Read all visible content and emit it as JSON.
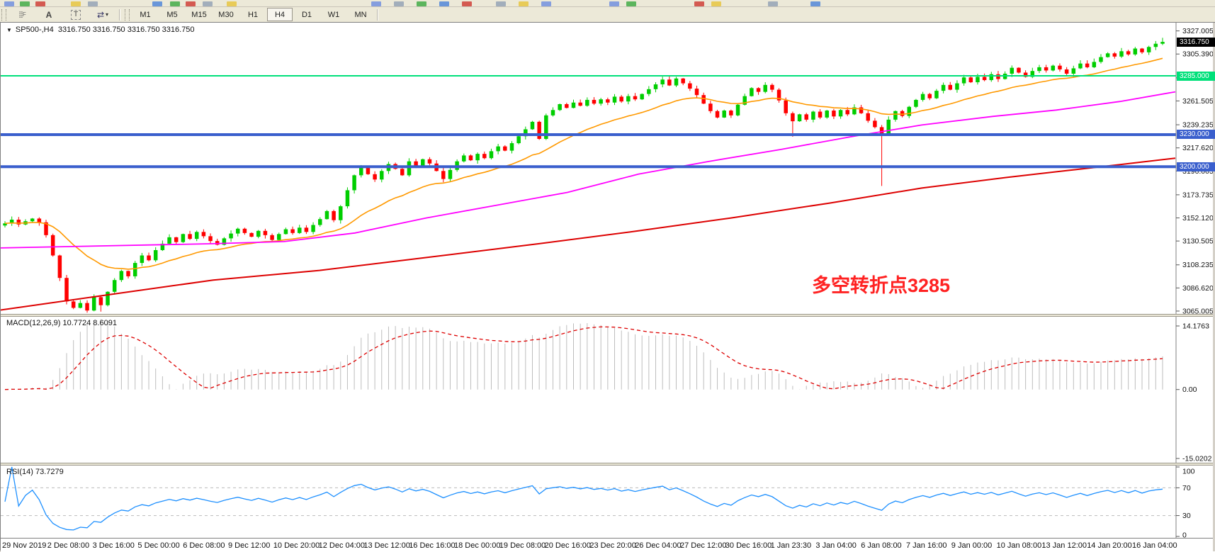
{
  "toolbar": {
    "left_icons": [
      {
        "name": "docking-grip-icon",
        "glyph": "F"
      },
      {
        "name": "text-label-icon",
        "glyph": "A"
      },
      {
        "name": "text-box-icon",
        "glyph": "T"
      },
      {
        "name": "arrow-objects-icon",
        "glyph": "⇄"
      },
      {
        "name": "dropdown-caret-icon",
        "glyph": "▾"
      }
    ],
    "timeframes": [
      "M1",
      "M5",
      "M15",
      "M30",
      "H1",
      "H4",
      "D1",
      "W1",
      "MN"
    ],
    "active_timeframe": "H4"
  },
  "chart": {
    "title_symbol": "SP500-,H4",
    "title_ohlc": "3316.750 3316.750 3316.750 3316.750",
    "current_price": "3316.750",
    "annotation": {
      "text": "多空转折点3285",
      "color": "#FF2222"
    },
    "price_axis_ticks": [
      "3327.005",
      "3305.390",
      "3283.120",
      "3261.505",
      "3239.235",
      "3217.620",
      "3196.005",
      "3173.735",
      "3152.120",
      "3130.505",
      "3108.235",
      "3086.620",
      "3065.005"
    ],
    "hlines": [
      {
        "price": 3285.0,
        "label": "3285.000",
        "color": "#00E07A",
        "text_color": "#FFFFFF",
        "width": 2
      },
      {
        "price": 3230.0,
        "label": "3230.000",
        "color": "#3A5FCD",
        "text_color": "#FFFFFF",
        "width": 4
      },
      {
        "price": 3200.0,
        "label": "3200.000",
        "color": "#3A5FCD",
        "text_color": "#FFFFFF",
        "width": 4
      }
    ]
  },
  "indicators": {
    "macd": {
      "label": "MACD(12,26,9) 10.7724 8.6091",
      "axis_top": "14.1763",
      "axis_zero": "0.00",
      "axis_bottom": "-15.0202"
    },
    "rsi": {
      "label": "RSI(14) 73.7279",
      "axis": [
        "100",
        "70",
        "30",
        "0"
      ],
      "levels": [
        70,
        30
      ]
    }
  },
  "time_axis": {
    "labels": [
      "29 Nov 2019",
      "2 Dec 08:00",
      "3 Dec 16:00",
      "5 Dec 00:00",
      "6 Dec 08:00",
      "9 Dec 12:00",
      "10 Dec 20:00",
      "12 Dec 04:00",
      "13 Dec 12:00",
      "16 Dec 16:00",
      "18 Dec 00:00",
      "19 Dec 08:00",
      "20 Dec 16:00",
      "23 Dec 20:00",
      "26 Dec 04:00",
      "27 Dec 12:00",
      "30 Dec 16:00",
      "1 Jan 23:30",
      "3 Jan 04:00",
      "6 Jan 08:00",
      "7 Jan 16:00",
      "9 Jan 00:00",
      "10 Jan 08:00",
      "13 Jan 12:00",
      "14 Jan 20:00",
      "16 Jan 04:00"
    ]
  },
  "colors": {
    "candle_up": "#00CE00",
    "candle_down": "#FF0000",
    "ma_fast": "#FF9900",
    "ma_mid": "#FF00FF",
    "ma_slow": "#DD0000",
    "macd_hist": "#BDBDBD",
    "macd_signal": "#DD0000",
    "rsi_line": "#1E90FF",
    "rsi_level": "#BBBBBB",
    "current_price_bg": "#000000"
  },
  "chart_data": {
    "type": "candlestick",
    "symbol": "SP500-",
    "period": "H4",
    "price_range_visible": [
      3065.005,
      3327.005
    ],
    "closes": [
      3147,
      3150.5,
      3146,
      3149,
      3151.5,
      3148,
      3136,
      3117,
      3096,
      3074,
      3068,
      3072.5,
      3065.5,
      3078,
      3070.5,
      3083,
      3094,
      3102.5,
      3097.5,
      3110,
      3117,
      3112.5,
      3122,
      3128,
      3134,
      3129.5,
      3137,
      3132.5,
      3139,
      3135,
      3130.5,
      3127,
      3133,
      3137.5,
      3142,
      3138,
      3134.5,
      3140,
      3136,
      3131.5,
      3137,
      3141.5,
      3138,
      3143,
      3139,
      3145.5,
      3151,
      3158.5,
      3150,
      3163,
      3178,
      3192,
      3199.5,
      3193,
      3188,
      3196,
      3202.5,
      3198,
      3192,
      3205,
      3200.5,
      3207,
      3203,
      3196,
      3188.5,
      3197,
      3205,
      3210.5,
      3206,
      3212,
      3208,
      3214.5,
      3219,
      3215,
      3222,
      3228.5,
      3235,
      3242,
      3226,
      3248,
      3253,
      3258.5,
      3255,
      3260,
      3257,
      3262.5,
      3259,
      3263,
      3260,
      3265.5,
      3261,
      3266,
      3263,
      3268,
      3272.5,
      3277,
      3281.5,
      3276,
      3282.5,
      3278,
      3273,
      3267,
      3259,
      3252,
      3246,
      3252.5,
      3248,
      3258,
      3266,
      3273.5,
      3270,
      3276.5,
      3272,
      3262,
      3250,
      3242.5,
      3249,
      3244,
      3251.5,
      3246,
      3252.5,
      3247,
      3253,
      3249,
      3255.5,
      3250,
      3243,
      3237,
      3230.5,
      3244,
      3252,
      3247.5,
      3256,
      3262.5,
      3268,
      3264,
      3271,
      3276.5,
      3272,
      3278,
      3283.5,
      3279,
      3284,
      3281,
      3286.5,
      3282,
      3287,
      3292.5,
      3288,
      3284,
      3289.5,
      3293,
      3290,
      3294.5,
      3291,
      3287,
      3292,
      3296.5,
      3293,
      3298,
      3302.5,
      3306,
      3303,
      3308,
      3305,
      3310.5,
      3307,
      3312,
      3315,
      3316.75
    ],
    "wick_overrides": {
      "12": {
        "low": 3063.5
      },
      "14": {
        "low": 3064.5
      },
      "115": {
        "low": 3228
      },
      "128": {
        "low": 3182
      },
      "169": {
        "high": 3320.5
      }
    },
    "ma_fast_period": 20,
    "ma_mid_points": [
      [
        0,
        3124
      ],
      [
        150,
        3126
      ],
      [
        300,
        3128
      ],
      [
        400,
        3130
      ],
      [
        500,
        3138
      ],
      [
        600,
        3152
      ],
      [
        700,
        3164
      ],
      [
        800,
        3176
      ],
      [
        900,
        3193
      ],
      [
        1000,
        3205
      ],
      [
        1100,
        3216
      ],
      [
        1200,
        3228
      ],
      [
        1300,
        3239
      ],
      [
        1400,
        3247
      ],
      [
        1490,
        3253
      ],
      [
        1580,
        3261
      ],
      [
        1658,
        3270
      ]
    ],
    "ma_slow_points": [
      [
        0,
        3066
      ],
      [
        150,
        3080
      ],
      [
        300,
        3094
      ],
      [
        450,
        3103
      ],
      [
        600,
        3115
      ],
      [
        760,
        3128
      ],
      [
        900,
        3140
      ],
      [
        1030,
        3152
      ],
      [
        1170,
        3166
      ],
      [
        1300,
        3180
      ],
      [
        1420,
        3190
      ],
      [
        1500,
        3196
      ],
      [
        1580,
        3202
      ],
      [
        1658,
        3208
      ]
    ],
    "macd_params": [
      12,
      26,
      9
    ],
    "macd_axis_range": [
      -15.0202,
      14.1763
    ],
    "rsi_period": 14,
    "rsi_last": 73.7279
  }
}
